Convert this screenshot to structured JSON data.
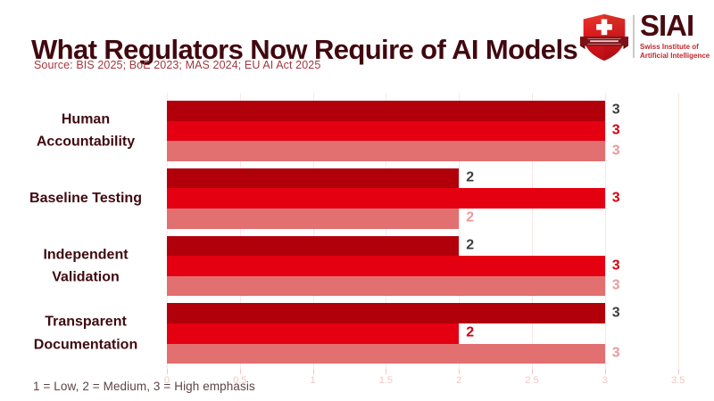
{
  "header": {
    "title": "What Regulators Now Require of AI Models",
    "source": "Source: BIS 2025; BoE 2023; MAS 2024; EU AI Act 2025"
  },
  "logo": {
    "name": "SIAI",
    "tagline_line1": "Swiss Institute of",
    "tagline_line2": "Artificial Intelligence"
  },
  "footnote": "1 = Low, 2 = Medium, 3 = High emphasis",
  "colors": {
    "title": "#41080f",
    "source_text": "#a2383e",
    "footnote_text": "#5f4445",
    "grid": "#fae6e6",
    "tick_label": "#f2c6c6",
    "series_dark_red": "#b2000a",
    "series_bright_red": "#e50011",
    "series_light_red": "#e37070"
  },
  "chart_data": {
    "type": "bar",
    "orientation": "horizontal",
    "title": "What Regulators Now Require of AI Models",
    "xlabel": "",
    "ylabel": "",
    "xlim": [
      0,
      3.5
    ],
    "xticks": [
      0,
      0.5,
      1,
      1.5,
      2,
      2.5,
      3,
      3.5
    ],
    "xtick_labels": [
      "0",
      "0.5",
      "1",
      "1.5",
      "2",
      "2.5",
      "3",
      "3.5"
    ],
    "grid": true,
    "legend_position": "none",
    "value_labels_shown": true,
    "scale_note": "1 = Low, 2 = Medium, 3 = High emphasis",
    "categories": [
      {
        "label": "Human Accountability",
        "lines": [
          "Human",
          "Accountability"
        ]
      },
      {
        "label": "Baseline Testing",
        "lines": [
          "Baseline Testing"
        ]
      },
      {
        "label": "Independent Validation",
        "lines": [
          "Independent",
          "Validation"
        ]
      },
      {
        "label": "Transparent Documentation",
        "lines": [
          "Transparent",
          "Documentation"
        ]
      }
    ],
    "series": [
      {
        "name": "dark-red-series",
        "color": "#b2000a",
        "label_color": "#3d3d3d",
        "values": [
          3,
          2,
          2,
          3
        ]
      },
      {
        "name": "bright-red-series",
        "color": "#e50011",
        "label_color": "#d4000f",
        "values": [
          3,
          3,
          3,
          2
        ]
      },
      {
        "name": "light-red-series",
        "color": "#e37070",
        "label_color": "#ea9a9a",
        "values": [
          3,
          2,
          3,
          3
        ]
      }
    ]
  }
}
